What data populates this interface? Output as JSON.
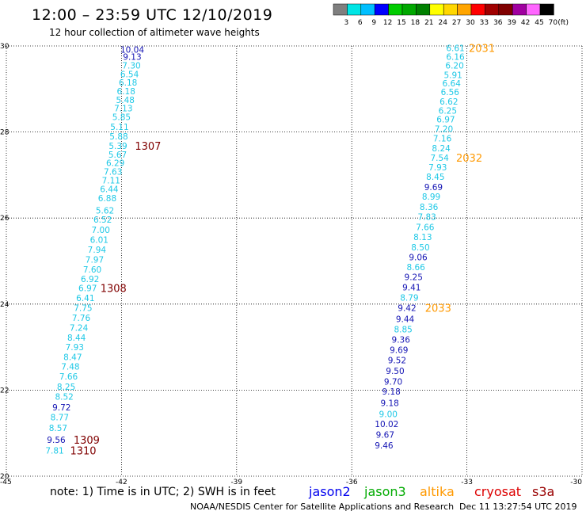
{
  "header": {
    "title": "12:00 – 23:59 UTC 12/10/2019",
    "subtitle": "12 hour collection of altimeter wave heights"
  },
  "color_scale": {
    "labels": [
      "3",
      "6",
      "9",
      "12",
      "15",
      "18",
      "21",
      "24",
      "27",
      "30",
      "33",
      "36",
      "39",
      "42",
      "45",
      "70"
    ],
    "unit": "(ft)",
    "colors": [
      "#7f7f7f",
      "#00e5e5",
      "#00bfff",
      "#0000ff",
      "#00cc00",
      "#00a800",
      "#008000",
      "#ffff00",
      "#ffd700",
      "#ffa500",
      "#ff0000",
      "#a00000",
      "#800000",
      "#a000a0",
      "#ff66ff",
      "#000000"
    ]
  },
  "chart_data": {
    "type": "scatter",
    "xlim": [
      -45,
      -30
    ],
    "ylim": [
      20,
      30
    ],
    "x_ticks": [
      -45,
      -42,
      -39,
      -36,
      -33,
      -30
    ],
    "y_ticks": [
      20,
      22,
      24,
      26,
      28,
      30
    ],
    "x_tick_labels": [
      "-45",
      "-42",
      "-39",
      "-36",
      "-33",
      "-30"
    ],
    "y_tick_labels": [
      "20",
      "22",
      "24",
      "26",
      "28",
      "30"
    ],
    "grid": true,
    "color_key": {
      "light": "#1ec8e6",
      "mid": "#2fa8e8",
      "dark": "#1414b4"
    },
    "points": [
      {
        "x": -41.72,
        "y": 29.92,
        "v": "10.04",
        "c": "dark"
      },
      {
        "x": -41.72,
        "y": 29.75,
        "v": "9.13",
        "c": "dark"
      },
      {
        "x": -41.74,
        "y": 29.55,
        "v": "7.30",
        "c": "light"
      },
      {
        "x": -41.79,
        "y": 29.35,
        "v": "6.54",
        "c": "light"
      },
      {
        "x": -41.83,
        "y": 29.15,
        "v": "6.18",
        "c": "light"
      },
      {
        "x": -41.88,
        "y": 28.95,
        "v": "6.18",
        "c": "light"
      },
      {
        "x": -41.9,
        "y": 28.75,
        "v": "5.48",
        "c": "light"
      },
      {
        "x": -41.95,
        "y": 28.55,
        "v": "7.13",
        "c": "light"
      },
      {
        "x": -42.0,
        "y": 28.35,
        "v": "5.85",
        "c": "light"
      },
      {
        "x": -42.05,
        "y": 28.12,
        "v": "5.11",
        "c": "light"
      },
      {
        "x": -42.07,
        "y": 27.9,
        "v": "5.88",
        "c": "light"
      },
      {
        "x": -42.09,
        "y": 27.68,
        "v": "5.39",
        "c": "light"
      },
      {
        "x": -42.1,
        "y": 27.48,
        "v": "5.67",
        "c": "light"
      },
      {
        "x": -42.16,
        "y": 27.28,
        "v": "6.29",
        "c": "light"
      },
      {
        "x": -42.22,
        "y": 27.08,
        "v": "7.63",
        "c": "light"
      },
      {
        "x": -42.27,
        "y": 26.88,
        "v": "7.11",
        "c": "light"
      },
      {
        "x": -42.32,
        "y": 26.68,
        "v": "6.44",
        "c": "light"
      },
      {
        "x": -42.37,
        "y": 26.46,
        "v": "6.88",
        "c": "light"
      },
      {
        "x": -42.43,
        "y": 26.18,
        "v": "5.62",
        "c": "light"
      },
      {
        "x": -42.49,
        "y": 25.97,
        "v": "6.52",
        "c": "light"
      },
      {
        "x": -42.54,
        "y": 25.73,
        "v": "7.00",
        "c": "light"
      },
      {
        "x": -42.58,
        "y": 25.5,
        "v": "6.01",
        "c": "light"
      },
      {
        "x": -42.64,
        "y": 25.27,
        "v": "7.94",
        "c": "light"
      },
      {
        "x": -42.7,
        "y": 25.04,
        "v": "7.97",
        "c": "light"
      },
      {
        "x": -42.76,
        "y": 24.81,
        "v": "7.60",
        "c": "light"
      },
      {
        "x": -42.82,
        "y": 24.59,
        "v": "6.92",
        "c": "light"
      },
      {
        "x": -42.88,
        "y": 24.37,
        "v": "6.97",
        "c": "light"
      },
      {
        "x": -42.94,
        "y": 24.14,
        "v": "6.41",
        "c": "light"
      },
      {
        "x": -43.0,
        "y": 23.91,
        "v": "7.75",
        "c": "light"
      },
      {
        "x": -43.05,
        "y": 23.68,
        "v": "7.76",
        "c": "light"
      },
      {
        "x": -43.11,
        "y": 23.45,
        "v": "7.24",
        "c": "light"
      },
      {
        "x": -43.17,
        "y": 23.22,
        "v": "8.44",
        "c": "light"
      },
      {
        "x": -43.22,
        "y": 23.0,
        "v": "7.93",
        "c": "light"
      },
      {
        "x": -43.27,
        "y": 22.77,
        "v": "8.47",
        "c": "light"
      },
      {
        "x": -43.33,
        "y": 22.55,
        "v": "7.48",
        "c": "light"
      },
      {
        "x": -43.38,
        "y": 22.32,
        "v": "7.66",
        "c": "light"
      },
      {
        "x": -43.44,
        "y": 22.08,
        "v": "8.25",
        "c": "light"
      },
      {
        "x": -43.49,
        "y": 21.85,
        "v": "8.52",
        "c": "light"
      },
      {
        "x": -43.56,
        "y": 21.6,
        "v": "9.72",
        "c": "dark"
      },
      {
        "x": -43.61,
        "y": 21.37,
        "v": "8.77",
        "c": "light"
      },
      {
        "x": -43.65,
        "y": 21.12,
        "v": "8.57",
        "c": "light"
      },
      {
        "x": -43.7,
        "y": 20.85,
        "v": "9.56",
        "c": "dark"
      },
      {
        "x": -43.74,
        "y": 20.6,
        "v": "7.81",
        "c": "light"
      },
      {
        "x": -33.3,
        "y": 29.95,
        "v": "6.61",
        "c": "light"
      },
      {
        "x": -33.3,
        "y": 29.75,
        "v": "6.16",
        "c": "light"
      },
      {
        "x": -33.32,
        "y": 29.55,
        "v": "6.20",
        "c": "light"
      },
      {
        "x": -33.36,
        "y": 29.33,
        "v": "5.91",
        "c": "light"
      },
      {
        "x": -33.4,
        "y": 29.13,
        "v": "6.64",
        "c": "light"
      },
      {
        "x": -33.44,
        "y": 28.93,
        "v": "6.56",
        "c": "light"
      },
      {
        "x": -33.47,
        "y": 28.71,
        "v": "6.62",
        "c": "light"
      },
      {
        "x": -33.5,
        "y": 28.5,
        "v": "6.25",
        "c": "light"
      },
      {
        "x": -33.55,
        "y": 28.3,
        "v": "6.97",
        "c": "light"
      },
      {
        "x": -33.6,
        "y": 28.08,
        "v": "7.20",
        "c": "light"
      },
      {
        "x": -33.64,
        "y": 27.85,
        "v": "7.16",
        "c": "light"
      },
      {
        "x": -33.67,
        "y": 27.62,
        "v": "8.24",
        "c": "light"
      },
      {
        "x": -33.71,
        "y": 27.4,
        "v": "7.54",
        "c": "light"
      },
      {
        "x": -33.76,
        "y": 27.18,
        "v": "7.93",
        "c": "light"
      },
      {
        "x": -33.82,
        "y": 26.96,
        "v": "8.45",
        "c": "light"
      },
      {
        "x": -33.87,
        "y": 26.72,
        "v": "9.69",
        "c": "dark"
      },
      {
        "x": -33.93,
        "y": 26.5,
        "v": "8.99",
        "c": "light"
      },
      {
        "x": -33.99,
        "y": 26.26,
        "v": "8.36",
        "c": "light"
      },
      {
        "x": -34.04,
        "y": 26.03,
        "v": "7.83",
        "c": "light"
      },
      {
        "x": -34.09,
        "y": 25.79,
        "v": "7.66",
        "c": "light"
      },
      {
        "x": -34.15,
        "y": 25.56,
        "v": "8.13",
        "c": "light"
      },
      {
        "x": -34.21,
        "y": 25.32,
        "v": "8.50",
        "c": "light"
      },
      {
        "x": -34.27,
        "y": 25.09,
        "v": "9.06",
        "c": "dark"
      },
      {
        "x": -34.33,
        "y": 24.86,
        "v": "8.66",
        "c": "light"
      },
      {
        "x": -34.39,
        "y": 24.63,
        "v": "9.25",
        "c": "dark"
      },
      {
        "x": -34.44,
        "y": 24.39,
        "v": "9.41",
        "c": "dark"
      },
      {
        "x": -34.5,
        "y": 24.15,
        "v": "8.79",
        "c": "light"
      },
      {
        "x": -34.56,
        "y": 23.91,
        "v": "9.42",
        "c": "dark"
      },
      {
        "x": -34.61,
        "y": 23.66,
        "v": "9.44",
        "c": "dark"
      },
      {
        "x": -34.66,
        "y": 23.42,
        "v": "8.85",
        "c": "light"
      },
      {
        "x": -34.72,
        "y": 23.18,
        "v": "9.36",
        "c": "dark"
      },
      {
        "x": -34.77,
        "y": 22.94,
        "v": "9.69",
        "c": "dark"
      },
      {
        "x": -34.82,
        "y": 22.7,
        "v": "9.52",
        "c": "dark"
      },
      {
        "x": -34.87,
        "y": 22.45,
        "v": "9.50",
        "c": "dark"
      },
      {
        "x": -34.92,
        "y": 22.2,
        "v": "9.70",
        "c": "dark"
      },
      {
        "x": -34.97,
        "y": 21.97,
        "v": "9.18",
        "c": "dark"
      },
      {
        "x": -35.01,
        "y": 21.7,
        "v": "9.18",
        "c": "dark"
      },
      {
        "x": -35.05,
        "y": 21.45,
        "v": "9.00",
        "c": "light"
      },
      {
        "x": -35.09,
        "y": 21.22,
        "v": "10.02",
        "c": "dark"
      },
      {
        "x": -35.13,
        "y": 20.97,
        "v": "9.67",
        "c": "dark"
      },
      {
        "x": -35.16,
        "y": 20.72,
        "v": "9.46",
        "c": "dark"
      }
    ],
    "time_labels": [
      {
        "x": -41.65,
        "y": 27.68,
        "v": "1307",
        "color": "#800000"
      },
      {
        "x": -42.55,
        "y": 24.37,
        "v": "1308",
        "color": "#800000"
      },
      {
        "x": -43.25,
        "y": 20.85,
        "v": "1309",
        "color": "#800000"
      },
      {
        "x": -43.34,
        "y": 20.6,
        "v": "1310",
        "color": "#800000"
      },
      {
        "x": -32.95,
        "y": 29.95,
        "v": "2031",
        "color": "#ff9900"
      },
      {
        "x": -33.28,
        "y": 27.4,
        "v": "2032",
        "color": "#ff9900"
      },
      {
        "x": -34.09,
        "y": 23.91,
        "v": "2033",
        "color": "#ff9900"
      }
    ]
  },
  "legend": {
    "items": [
      {
        "label": "jason2",
        "color": "#0000ee"
      },
      {
        "label": "jason3",
        "color": "#00aa00"
      },
      {
        "label": "altika",
        "color": "#ff9900"
      },
      {
        "label": "cryosat",
        "color": "#dd0000"
      },
      {
        "label": "s3a",
        "color": "#990000"
      }
    ]
  },
  "footer": {
    "note": "note: 1) Time is in UTC; 2) SWH is in feet",
    "credit": "NOAA/NESDIS Center for Satellite Applications and Research",
    "timestamp": "Dec 11 13:27:54 UTC 2019"
  }
}
